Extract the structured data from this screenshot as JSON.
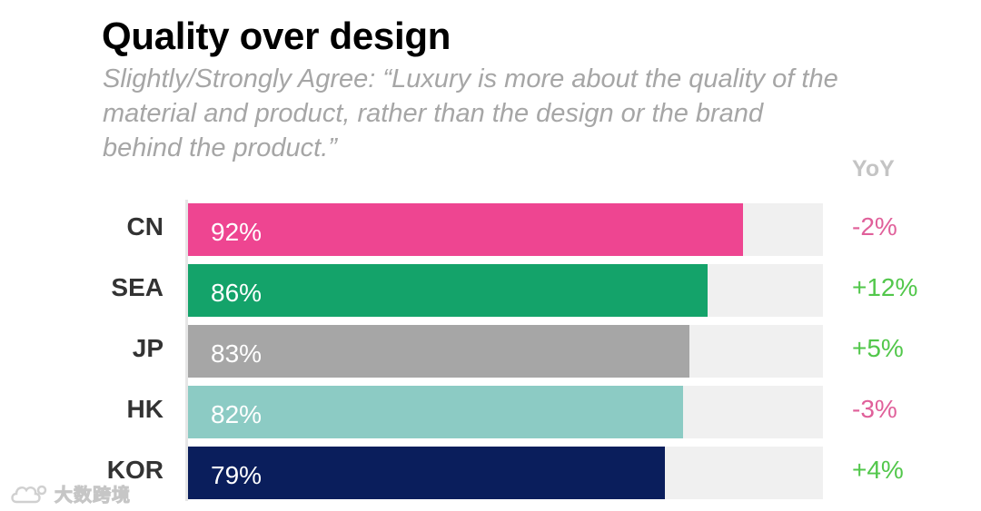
{
  "chart_data": {
    "type": "bar",
    "orientation": "horizontal",
    "title": "Quality over design",
    "subtitle": "Slightly/Strongly Agree: “Luxury is more about the quality of the material and product, rather than the design or the brand behind the product.”",
    "categories": [
      "CN",
      "SEA",
      "JP",
      "HK",
      "KOR"
    ],
    "values": [
      92,
      86,
      83,
      82,
      79
    ],
    "value_labels": [
      "92%",
      "86%",
      "83%",
      "82%",
      "79%"
    ],
    "bar_colors": [
      "#ee4591",
      "#14a36a",
      "#a6a6a6",
      "#8ccbc4",
      "#0a1e5c"
    ],
    "xlim": [
      0,
      100
    ],
    "grid": false,
    "yoy_header": "YoY",
    "yoy_values": [
      "-2%",
      "+12%",
      "+5%",
      "-3%",
      "+4%"
    ],
    "yoy_colors": [
      "#e0609a",
      "#52c74b",
      "#52c74b",
      "#e0609a",
      "#52c74b"
    ]
  },
  "watermark": {
    "text": "大数跨境",
    "icon": "cloud-logo-icon"
  }
}
